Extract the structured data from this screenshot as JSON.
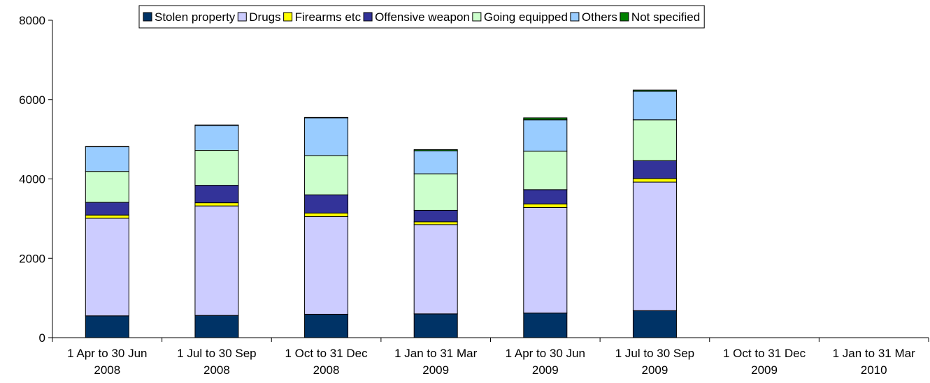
{
  "chart_data": {
    "type": "bar",
    "stacked": true,
    "categories": [
      [
        "1 Apr to 30 Jun",
        "2008"
      ],
      [
        "1 Jul to 30 Sep",
        "2008"
      ],
      [
        "1 Oct to 31 Dec",
        "2008"
      ],
      [
        "1 Jan to 31 Mar",
        "2009"
      ],
      [
        "1 Apr to 30 Jun",
        "2009"
      ],
      [
        "1 Jul to 30 Sep",
        "2009"
      ],
      [
        "1 Oct to 31 Dec",
        "2009"
      ],
      [
        "1 Jan to 31 Mar",
        "2010"
      ]
    ],
    "series": [
      {
        "name": "Stolen property",
        "color": "#003366",
        "values": [
          550,
          560,
          590,
          600,
          620,
          680,
          null,
          null
        ]
      },
      {
        "name": "Drugs",
        "color": "#ccccff",
        "values": [
          2460,
          2760,
          2460,
          2250,
          2660,
          3240,
          null,
          null
        ]
      },
      {
        "name": "Firearms etc",
        "color": "#ffff00",
        "values": [
          80,
          80,
          90,
          70,
          90,
          90,
          null,
          null
        ]
      },
      {
        "name": "Offensive weapon",
        "color": "#333399",
        "values": [
          320,
          440,
          460,
          290,
          360,
          450,
          null,
          null
        ]
      },
      {
        "name": "Going equipped",
        "color": "#ccffcc",
        "values": [
          780,
          880,
          990,
          920,
          970,
          1030,
          null,
          null
        ]
      },
      {
        "name": "Others",
        "color": "#99ccff",
        "values": [
          620,
          630,
          950,
          580,
          790,
          720,
          null,
          null
        ]
      },
      {
        "name": "Not specified",
        "color": "#008000",
        "values": [
          10,
          10,
          10,
          30,
          50,
          30,
          null,
          null
        ]
      }
    ],
    "yticks": [
      0,
      2000,
      4000,
      6000,
      8000
    ],
    "ylim": [
      0,
      8000
    ],
    "grid": false,
    "legend_position": "top"
  }
}
